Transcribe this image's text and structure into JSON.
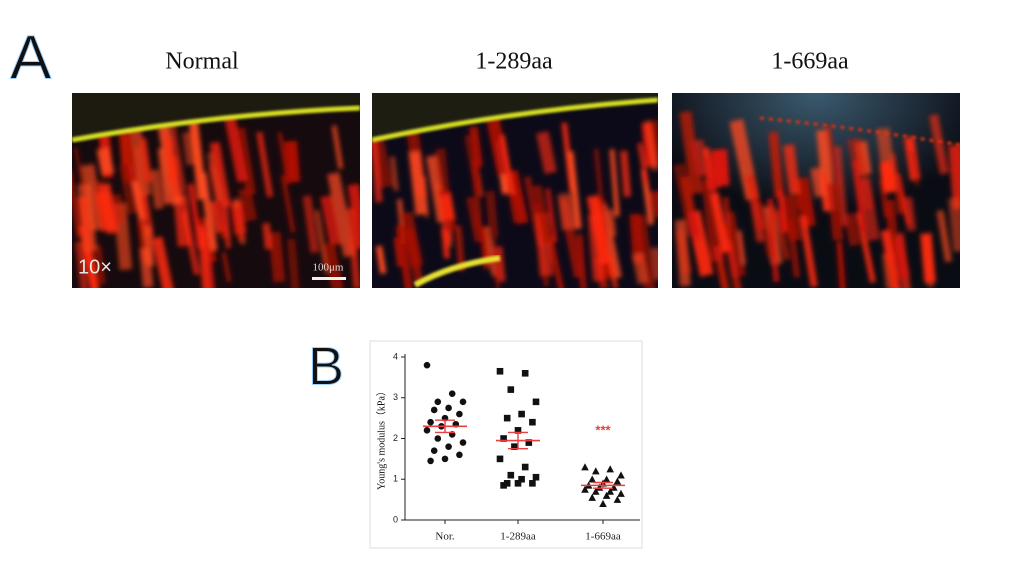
{
  "panel_a": {
    "label": "A",
    "titles": [
      "Normal",
      "1-289aa",
      "1-669aa"
    ],
    "magnification": "10×",
    "scale_bar": "100μm"
  },
  "panel_b": {
    "label": "B"
  },
  "chart_data": {
    "type": "strip",
    "y_label": "Young's modulus（kPa）",
    "categories": [
      "Nor.",
      "1-289aa",
      "1-669aa"
    ],
    "groups": [
      {
        "marker": "circle",
        "mean": 2.3,
        "sem": 0.15,
        "values": [
          3.8,
          3.1,
          2.9,
          2.9,
          2.75,
          2.7,
          2.6,
          2.5,
          2.4,
          2.35,
          2.3,
          2.2,
          2.1,
          2.0,
          1.9,
          1.8,
          1.7,
          1.6,
          1.5,
          1.45
        ]
      },
      {
        "marker": "square",
        "mean": 1.95,
        "sem": 0.2,
        "values": [
          3.65,
          3.6,
          3.2,
          2.9,
          2.6,
          2.5,
          2.4,
          2.2,
          2.0,
          1.9,
          1.8,
          1.5,
          1.3,
          1.1,
          1.05,
          1.0,
          0.9,
          0.9,
          0.9,
          0.85
        ]
      },
      {
        "marker": "triangle",
        "mean": 0.85,
        "sem": 0.07,
        "values": [
          1.3,
          1.25,
          1.2,
          1.1,
          1.0,
          1.0,
          0.95,
          0.9,
          0.85,
          0.8,
          0.8,
          0.75,
          0.7,
          0.7,
          0.65,
          0.6,
          0.55,
          0.5,
          0.4
        ]
      }
    ],
    "annotation": "***",
    "mean_color": "#e8403f",
    "point_color": "#111111",
    "ylim": [
      0,
      4
    ],
    "yticks": [
      0,
      1,
      2,
      3,
      4
    ]
  }
}
